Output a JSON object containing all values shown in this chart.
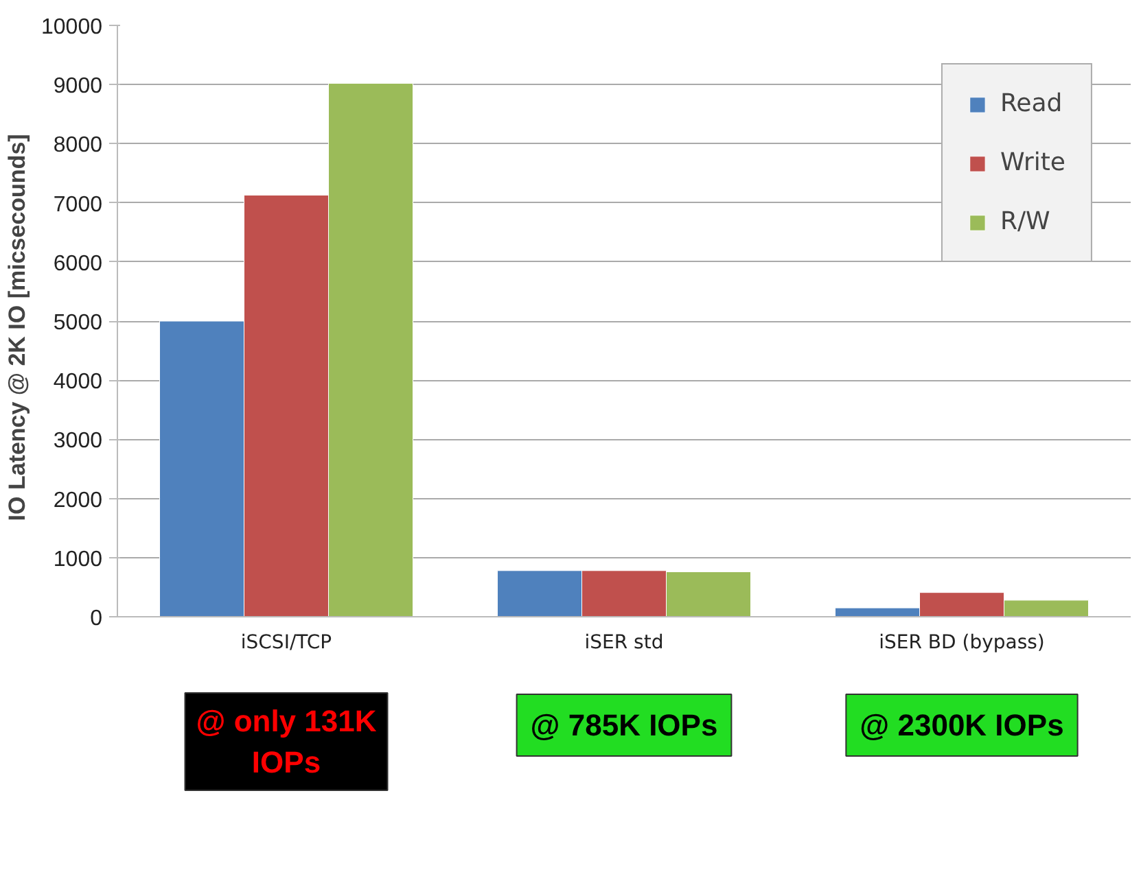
{
  "chart_data": {
    "type": "bar",
    "ylabel": "IO Latency @ 2K IO   [micsecounds]",
    "categories": [
      "iSCSI/TCP",
      "iSER std",
      "iSER BD (bypass)"
    ],
    "series": [
      {
        "name": "Read",
        "color": "#4f81bd",
        "values": [
          5000,
          780,
          150
        ]
      },
      {
        "name": "Write",
        "color": "#c0504d",
        "values": [
          7130,
          780,
          410
        ]
      },
      {
        "name": "R/W",
        "color": "#9bbb59",
        "values": [
          9020,
          760,
          280
        ]
      }
    ],
    "ylim": [
      0,
      10000
    ],
    "yticks": [
      0,
      1000,
      2000,
      3000,
      4000,
      5000,
      6000,
      7000,
      8000,
      9000,
      10000
    ],
    "grid": "y",
    "legend": "top right",
    "annotations": [
      "@ only 131K\nIOPs",
      "@ 785K IOPs",
      "@ 2300K IOPs"
    ]
  }
}
